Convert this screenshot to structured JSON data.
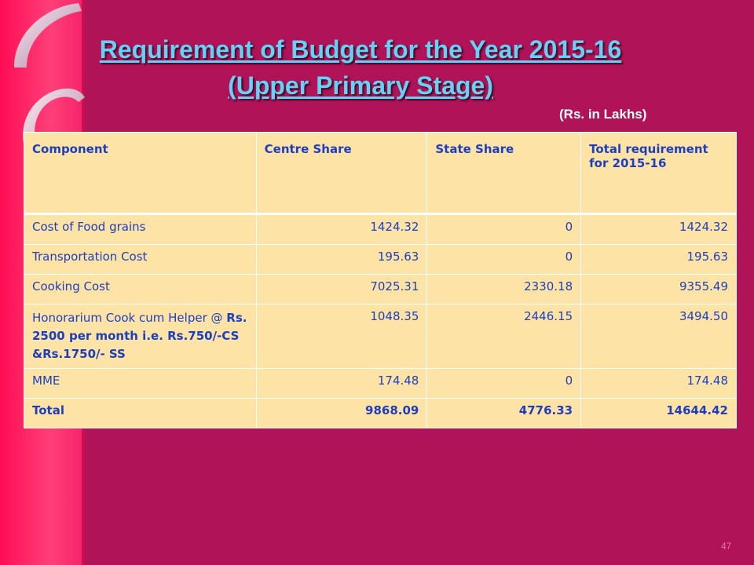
{
  "slide": {
    "title_line1": "Requirement of Budget for the Year 2015-16",
    "title_line2": "(Upper Primary Stage)",
    "unit_note": "(Rs. in Lakhs)",
    "page_number": "47"
  },
  "table": {
    "headers": [
      "Component",
      "Centre Share",
      "State Share",
      "Total requirement for 2015-16"
    ],
    "rows": [
      {
        "component": "Cost of Food grains",
        "centre": "1424.32",
        "state": "0",
        "total": "1424.32"
      },
      {
        "component": "Transportation Cost",
        "centre": "195.63",
        "state": "0",
        "total": "195.63"
      },
      {
        "component": "Cooking Cost",
        "centre": "7025.31",
        "state": "2330.18",
        "total": "9355.49"
      },
      {
        "component_plain": "Honorarium Cook cum Helper @ ",
        "component_bold": "Rs. 2500 per month i.e. Rs.750/-CS &Rs.1750/- SS",
        "centre": "1048.35",
        "state": "2446.15",
        "total": "3494.50"
      },
      {
        "component": "MME",
        "centre": "174.48",
        "state": "0",
        "total": "174.48"
      }
    ],
    "total_row": {
      "label": "Total",
      "centre": "9868.09",
      "state": "4776.33",
      "total": "14644.42"
    }
  },
  "colors": {
    "background": "#b01358",
    "left_panel": "#ff2a64",
    "title": "#66d0f5",
    "table_fill": "#fde3a6",
    "table_text": "#1d3fbf"
  }
}
